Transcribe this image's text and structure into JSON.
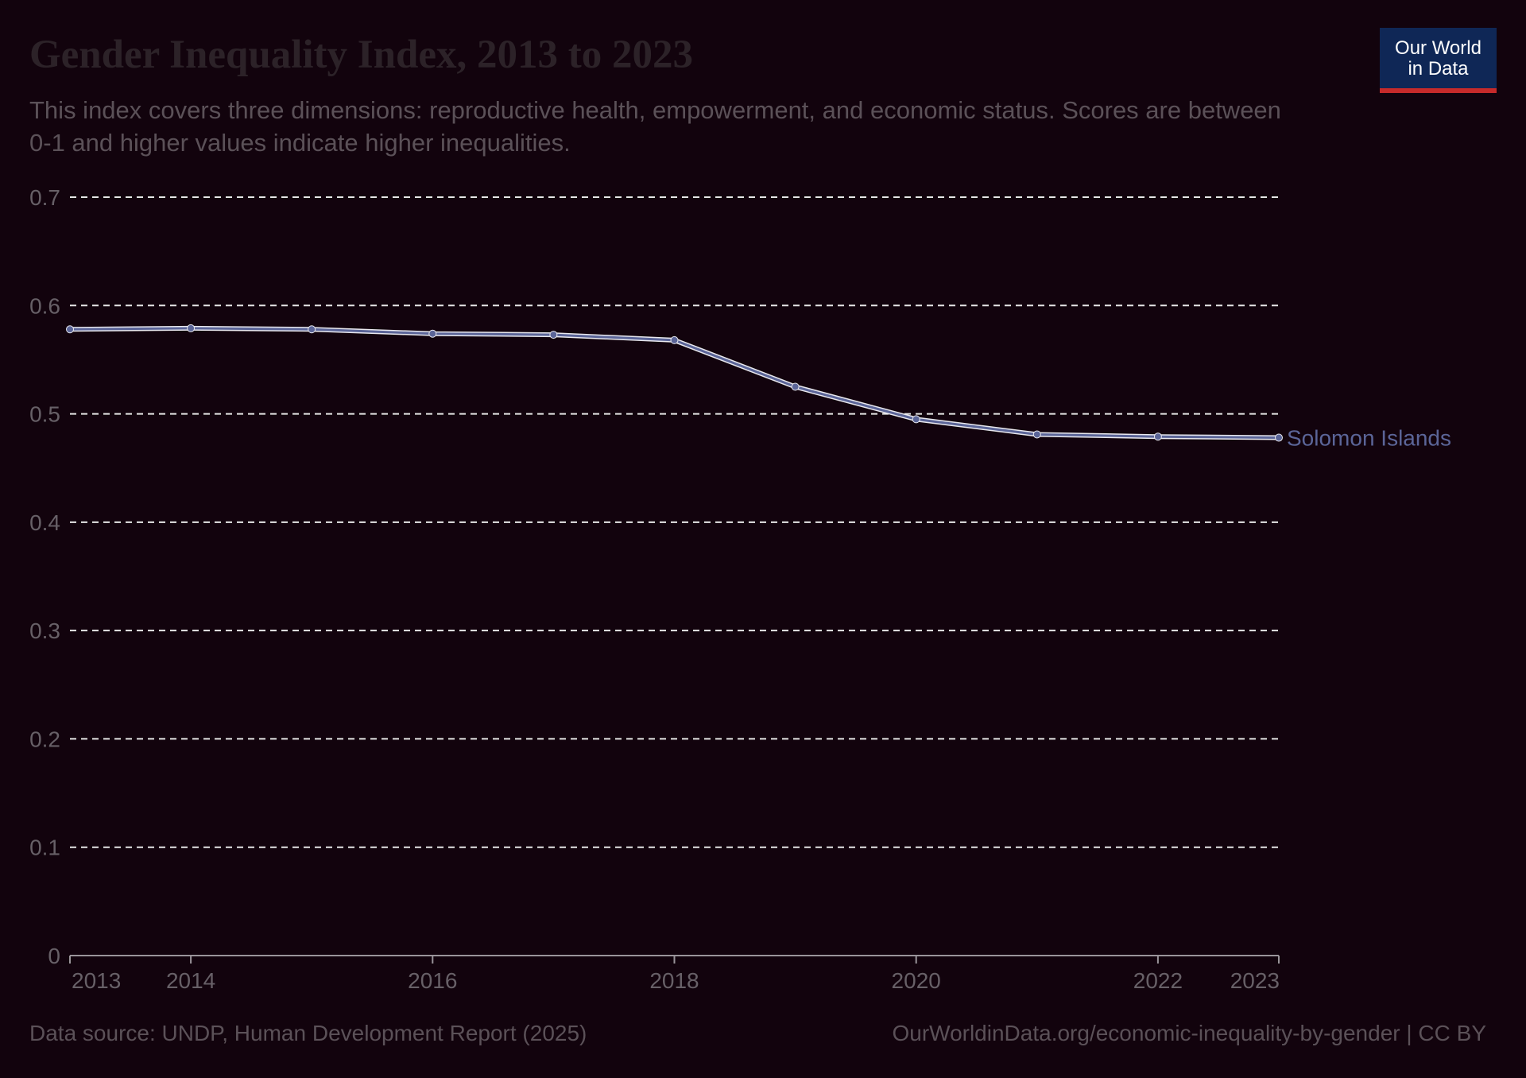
{
  "header": {
    "title": "Gender Inequality Index, 2013 to 2023",
    "subtitle": "This index covers three dimensions: reproductive health, empowerment, and economic status. Scores are between 0-1 and higher values indicate higher inequalities."
  },
  "logo": {
    "line1": "Our World",
    "line2": "in Data"
  },
  "footer": {
    "source": "Data source: UNDP, Human Development Report (2025)",
    "url": "OurWorldinData.org/economic-inequality-by-gender | CC BY"
  },
  "colors": {
    "background": "#12030d",
    "series": "#5b6598",
    "grid": "#e6e6e6",
    "axis_text": "#676067",
    "logo_bg": "#0f2756",
    "logo_accent": "#c62a2a"
  },
  "chart_data": {
    "type": "line",
    "x": [
      2013,
      2014,
      2015,
      2016,
      2017,
      2018,
      2019,
      2020,
      2021,
      2022,
      2023
    ],
    "series": [
      {
        "name": "Solomon Islands",
        "values": [
          0.578,
          0.579,
          0.578,
          0.574,
          0.573,
          0.568,
          0.525,
          0.495,
          0.481,
          0.479,
          0.478
        ]
      }
    ],
    "xticks": [
      2013,
      2014,
      2016,
      2018,
      2020,
      2022,
      2023
    ],
    "yticks": [
      0,
      0.1,
      0.2,
      0.3,
      0.4,
      0.5,
      0.6,
      0.7
    ],
    "ytick_labels": [
      "0",
      "0.1",
      "0.2",
      "0.3",
      "0.4",
      "0.5",
      "0.6",
      "0.7"
    ],
    "xlim": [
      2013,
      2023
    ],
    "ylim": [
      0,
      0.7
    ],
    "grid": "horizontal-dashed",
    "legend": "inline-label-at-line-end"
  }
}
